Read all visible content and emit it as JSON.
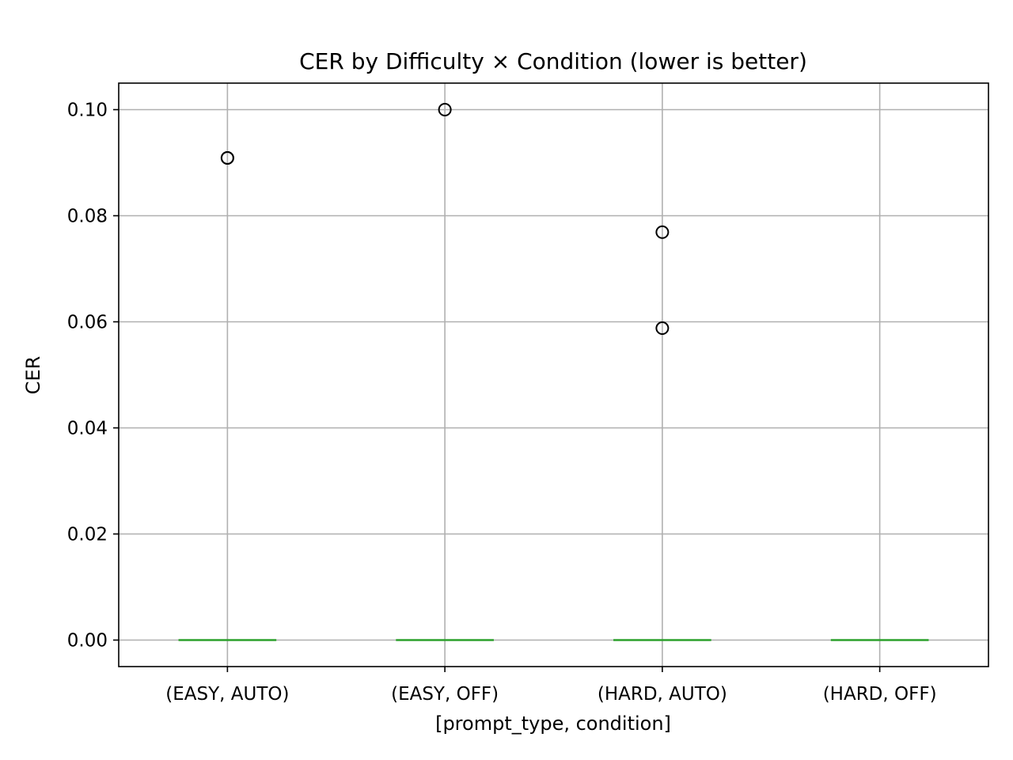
{
  "chart_data": {
    "type": "box",
    "title": "CER by Difficulty × Condition (lower is better)",
    "xlabel": "[prompt_type, condition]",
    "ylabel": "CER",
    "categories": [
      "(EASY, AUTO)",
      "(EASY, OFF)",
      "(HARD, AUTO)",
      "(HARD, OFF)"
    ],
    "ylim": [
      -0.005,
      0.105
    ],
    "yticks": [
      0.0,
      0.02,
      0.04,
      0.06,
      0.08,
      0.1
    ],
    "ytick_labels": [
      "0.00",
      "0.02",
      "0.04",
      "0.06",
      "0.08",
      "0.10"
    ],
    "grid": true,
    "boxes": [
      {
        "category": "(EASY, AUTO)",
        "q1": 0.0,
        "median": 0.0,
        "q3": 0.0,
        "whisker_low": 0.0,
        "whisker_high": 0.0,
        "outliers": [
          0.0909,
          0.0909
        ]
      },
      {
        "category": "(EASY, OFF)",
        "q1": 0.0,
        "median": 0.0,
        "q3": 0.0,
        "whisker_low": 0.0,
        "whisker_high": 0.0,
        "outliers": [
          0.1
        ]
      },
      {
        "category": "(HARD, AUTO)",
        "q1": 0.0,
        "median": 0.0,
        "q3": 0.0,
        "whisker_low": 0.0,
        "whisker_high": 0.0,
        "outliers": [
          0.0769,
          0.0588
        ]
      },
      {
        "category": "(HARD, OFF)",
        "q1": 0.0,
        "median": 0.0,
        "q3": 0.0,
        "whisker_low": 0.0,
        "whisker_high": 0.0,
        "outliers": []
      }
    ],
    "colors": {
      "median": "#2ca02c",
      "outlier": "#000000",
      "grid": "#b0b0b0"
    }
  }
}
